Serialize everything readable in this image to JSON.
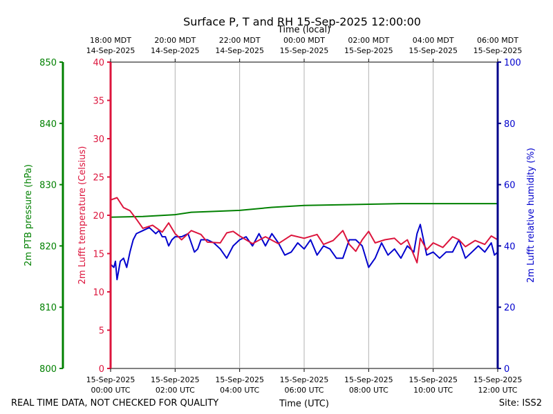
{
  "chart_data": {
    "type": "line",
    "title": "Surface P, T and RH 15-Sep-2025 12:00:00",
    "top_xlabel": "Time (local)",
    "bottom_xlabel": "Time (UTC)",
    "footer_left": "REAL TIME DATA, NOT CHECKED FOR QUALITY",
    "footer_right": "Site: ISS2",
    "x_range_hours_utc": [
      0,
      12
    ],
    "x_ticks_hours": [
      0,
      2,
      4,
      6,
      8,
      10,
      12
    ],
    "bottom_tick_labels": [
      [
        "15-Sep-2025",
        "00:00 UTC"
      ],
      [
        "15-Sep-2025",
        "02:00 UTC"
      ],
      [
        "15-Sep-2025",
        "04:00 UTC"
      ],
      [
        "15-Sep-2025",
        "06:00 UTC"
      ],
      [
        "15-Sep-2025",
        "08:00 UTC"
      ],
      [
        "15-Sep-2025",
        "10:00 UTC"
      ],
      [
        "15-Sep-2025",
        "12:00 UTC"
      ]
    ],
    "top_tick_labels": [
      [
        "18:00 MDT",
        "14-Sep-2025"
      ],
      [
        "20:00 MDT",
        "14-Sep-2025"
      ],
      [
        "22:00 MDT",
        "14-Sep-2025"
      ],
      [
        "00:00 MDT",
        "15-Sep-2025"
      ],
      [
        "02:00 MDT",
        "15-Sep-2025"
      ],
      [
        "04:00 MDT",
        "15-Sep-2025"
      ],
      [
        "06:00 MDT",
        "15-Sep-2025"
      ]
    ],
    "axes": {
      "pressure": {
        "label": "2m PTB pressure (hPa)",
        "range": [
          800,
          850
        ],
        "ticks": [
          800,
          810,
          820,
          830,
          840,
          850
        ],
        "color": "#008000"
      },
      "temperature": {
        "label": "2m Lufft temperature (Celsius)",
        "range": [
          0,
          40
        ],
        "ticks": [
          0,
          5,
          10,
          15,
          20,
          25,
          30,
          35,
          40
        ],
        "color": "#dc143c"
      },
      "humidity": {
        "label": "2m Lufft relative humidity (%)",
        "range": [
          0,
          100
        ],
        "ticks": [
          0,
          20,
          40,
          60,
          80,
          100
        ],
        "color": "#0000cd"
      }
    },
    "series": [
      {
        "name": "2m PTB pressure",
        "axis": "pressure",
        "color": "#008000",
        "x": [
          0,
          1,
          2,
          2.5,
          3,
          4,
          5,
          6,
          7,
          8,
          9,
          10,
          11,
          12
        ],
        "values": [
          824.7,
          824.8,
          825.1,
          825.5,
          825.6,
          825.8,
          826.3,
          826.6,
          826.7,
          826.8,
          826.9,
          826.9,
          826.9,
          826.9
        ]
      },
      {
        "name": "2m Lufft temperature",
        "axis": "temperature",
        "color": "#dc143c",
        "x": [
          0,
          0.2,
          0.4,
          0.6,
          0.8,
          1.0,
          1.3,
          1.6,
          1.8,
          2.0,
          2.2,
          2.5,
          2.8,
          3.0,
          3.4,
          3.6,
          3.8,
          4.0,
          4.4,
          4.8,
          5.2,
          5.6,
          6.0,
          6.4,
          6.6,
          6.9,
          7.2,
          7.4,
          7.6,
          7.8,
          8.0,
          8.2,
          8.5,
          8.8,
          9.0,
          9.2,
          9.4,
          9.5,
          9.6,
          9.8,
          10.0,
          10.3,
          10.6,
          10.8,
          11.0,
          11.3,
          11.6,
          11.8,
          12.0
        ],
        "values": [
          22,
          22.3,
          21,
          20.6,
          19.5,
          18.3,
          18.7,
          17.8,
          19,
          17.6,
          16.8,
          18,
          17.5,
          16.5,
          16.4,
          17.7,
          17.9,
          17.3,
          16.3,
          17.2,
          16.3,
          17.4,
          17,
          17.5,
          16.2,
          16.7,
          18,
          16.2,
          15.3,
          16.8,
          17.9,
          16.4,
          16.8,
          17,
          16.2,
          16.8,
          14.8,
          13.8,
          17,
          15.5,
          16.4,
          15.8,
          17.2,
          16.8,
          15.9,
          16.7,
          16.2,
          17.3,
          16.8
        ]
      },
      {
        "name": "2m Lufft relative humidity",
        "axis": "humidity",
        "color": "#0000cd",
        "x": [
          0,
          0.1,
          0.15,
          0.2,
          0.25,
          0.3,
          0.4,
          0.5,
          0.6,
          0.7,
          0.8,
          1.0,
          1.2,
          1.4,
          1.5,
          1.6,
          1.7,
          1.8,
          1.9,
          2.0,
          2.2,
          2.4,
          2.6,
          2.7,
          2.8,
          3.0,
          3.2,
          3.4,
          3.6,
          3.8,
          4.0,
          4.2,
          4.4,
          4.6,
          4.8,
          5.0,
          5.2,
          5.4,
          5.6,
          5.8,
          6.0,
          6.2,
          6.4,
          6.6,
          6.8,
          7.0,
          7.2,
          7.4,
          7.6,
          7.8,
          8.0,
          8.2,
          8.4,
          8.6,
          8.8,
          9.0,
          9.2,
          9.4,
          9.5,
          9.6,
          9.8,
          10.0,
          10.2,
          10.4,
          10.6,
          10.8,
          11.0,
          11.2,
          11.4,
          11.6,
          11.8,
          11.9,
          12.0
        ],
        "values": [
          34,
          33,
          35,
          29,
          32,
          35,
          36,
          33,
          38,
          42,
          44,
          45,
          46,
          44,
          45,
          43,
          43,
          40,
          42,
          43,
          43,
          44,
          38,
          39,
          42,
          42,
          41,
          39,
          36,
          40,
          42,
          43,
          40,
          44,
          40,
          44,
          41,
          37,
          38,
          41,
          39,
          42,
          37,
          40,
          39,
          36,
          36,
          42,
          42,
          40,
          33,
          36,
          41,
          37,
          39,
          36,
          40,
          38,
          44,
          47,
          37,
          38,
          36,
          38,
          38,
          42,
          36,
          38,
          40,
          38,
          41,
          37,
          38
        ]
      }
    ]
  }
}
